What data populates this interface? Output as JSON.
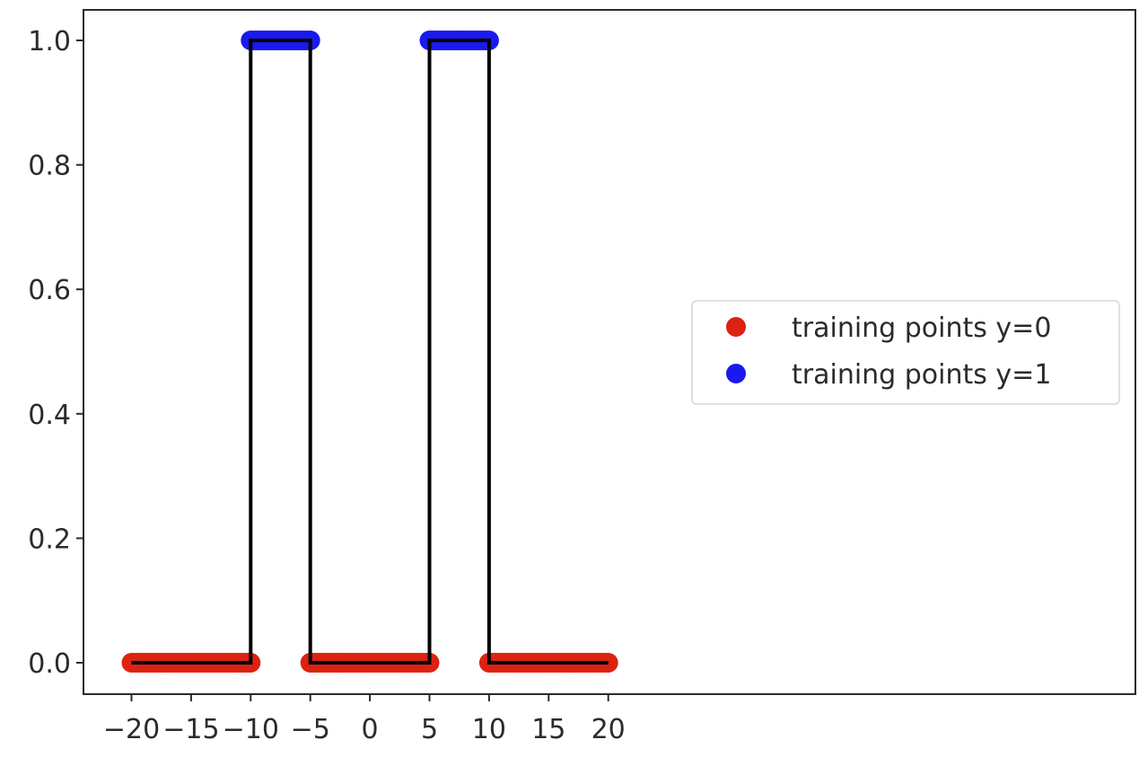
{
  "chart_data": {
    "type": "scatter",
    "title": "",
    "xlabel": "",
    "ylabel": "",
    "xlim": [
      -22,
      22
    ],
    "ylim": [
      -0.05,
      1.05
    ],
    "grid": false,
    "legend_placement": "center-right",
    "x_ticks": [
      {
        "value": -20,
        "label": "−20"
      },
      {
        "value": -15,
        "label": "−15"
      },
      {
        "value": -10,
        "label": "−10"
      },
      {
        "value": -5,
        "label": "−5"
      },
      {
        "value": 0,
        "label": "0"
      },
      {
        "value": 5,
        "label": "5"
      },
      {
        "value": 10,
        "label": "10"
      },
      {
        "value": 15,
        "label": "15"
      },
      {
        "value": 20,
        "label": "20"
      }
    ],
    "y_ticks": [
      {
        "value": 0.0,
        "label": "0.0"
      },
      {
        "value": 0.2,
        "label": "0.2"
      },
      {
        "value": 0.4,
        "label": "0.4"
      },
      {
        "value": 0.6,
        "label": "0.6"
      },
      {
        "value": 0.8,
        "label": "0.8"
      },
      {
        "value": 1.0,
        "label": "1.0"
      }
    ],
    "series": [
      {
        "name": "training points y=0",
        "color": "#dd2211",
        "segments": [
          {
            "x_from": -20,
            "x_to": -10,
            "y": 0
          },
          {
            "x_from": -5,
            "x_to": 5,
            "y": 0
          },
          {
            "x_from": 10,
            "x_to": 20,
            "y": 0
          }
        ]
      },
      {
        "name": "training points y=1",
        "color": "#1a1aee",
        "segments": [
          {
            "x_from": -10,
            "x_to": -5,
            "y": 1
          },
          {
            "x_from": 5,
            "x_to": 10,
            "y": 1
          }
        ]
      }
    ],
    "step_line": {
      "color": "#000000",
      "points": [
        [
          -20,
          0
        ],
        [
          -10,
          0
        ],
        [
          -10,
          1
        ],
        [
          -5,
          1
        ],
        [
          -5,
          0
        ],
        [
          5,
          0
        ],
        [
          5,
          1
        ],
        [
          10,
          1
        ],
        [
          10,
          0
        ],
        [
          20,
          0
        ]
      ]
    }
  }
}
